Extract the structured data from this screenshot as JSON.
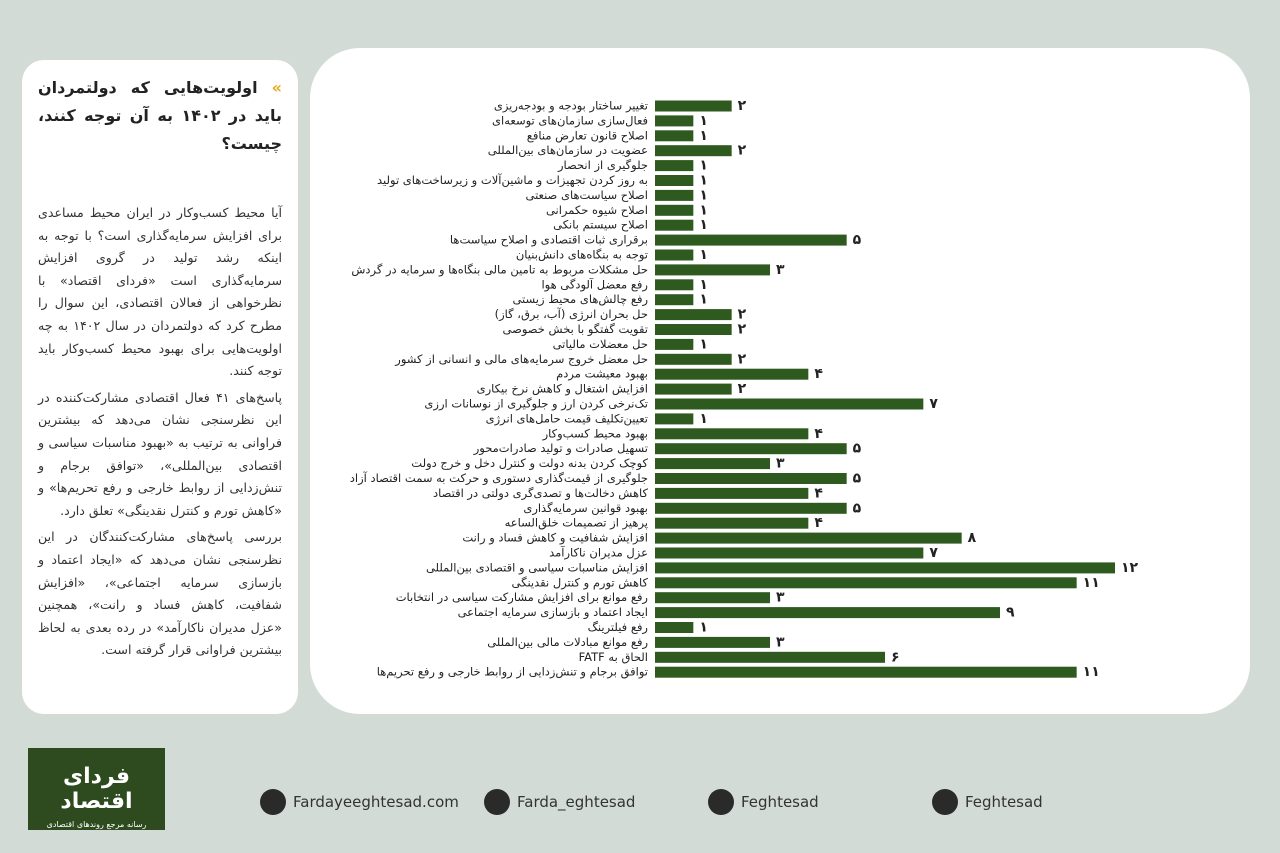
{
  "panel": {
    "title": "اولویت‌هایی که دولتمردان باید در ۱۴۰۲ به آن توجه کنند، چیست؟",
    "paragraphs": [
      "آیا محیط کسب‌وکار در ایران محیط مساعدی برای افزایش سرمایه‌گذاری است؟ با توجه به اینکه رشد تولید در گروی افزایش سرمایه‌گذاری است «فردای اقتصاد» با نظرخواهی از فعالان اقتصادی، این سوال را مطرح کرد که دولتمردان در سال ۱۴۰۲ به چه اولویت‌هایی برای بهبود محیط کسب‌وکار باید توجه کنند.",
      "پاسخ‌های ۴۱ فعال اقتصادی مشارکت‌کننده در این نظرسنجی نشان می‌دهد که بیشترین فراوانی به ترتیب به «بهبود مناسبات سیاسی و اقتصادی بین‌المللی»، «توافق برجام و تنش‌زدایی از روابط خارجی و رفع تحریم‌ها» و «کاهش تورم و کنترل نقدینگی» تعلق دارد.",
      "بررسی پاسخ‌های مشارکت‌کنندگان در این نظرسنجی نشان می‌دهد که «ایجاد اعتماد و بازسازی سرمایه اجتماعی»، «افزایش شفافیت، کاهش فساد و رانت»، همچنین «عزل مدیران ناکارآمد» در رده بعدی به لحاظ بیشترین فراوانی قرار گرفته است."
    ]
  },
  "chart_data": {
    "type": "barh",
    "color": "#2e5a1f",
    "categories": [
      "تغییر ساختار بودجه و بودجه‌ریزی",
      "فعال‌سازی سازمان‌های توسعه‌ای",
      "اصلاح قانون تعارض منافع",
      "عضویت در سازمان‌های بین‌المللی",
      "جلوگیری از انحصار",
      "به روز کردن تجهیزات و ماشین‌آلات و زیرساخت‌های تولید",
      "اصلاح سیاست‌های صنعتی",
      "اصلاح شیوه حکمرانی",
      "اصلاح سیستم بانکی",
      "برقراری ثبات اقتصادی و اصلاح سیاست‌ها",
      "توجه به بنگاه‌های دانش‌بنیان",
      "حل مشکلات مربوط به تامین مالی بنگاه‌ها و سرمایه در گردش",
      "رفع معضل آلودگی هوا",
      "رفع چالش‌های محیط زیستی",
      "حل بحران انرژی (آب، برق، گاز)",
      "تقویت گفتگو با بخش خصوصی",
      "حل معضلات مالیاتی",
      "حل معضل خروج سرمایه‌های مالی و انسانی از کشور",
      "بهبود معیشت مردم",
      "افزایش اشتغال و کاهش نرخ بیکاری",
      "تک‌نرخی کردن ارز و جلوگیری از نوسانات ارزی",
      "تعیین‌تکلیف قیمت حامل‌های انرژی",
      "بهبود محیط کسب‌وکار",
      "تسهیل صادرات و تولید صادرات‌محور",
      "کوچک کردن بدنه دولت و کنترل دخل و خرج دولت",
      "جلوگیری از قیمت‌گذاری دستوری و حرکت به سمت اقتصاد آزاد",
      "کاهش دخالت‌ها و تصدی‌گری دولتی در اقتصاد",
      "بهبود قوانین سرمایه‌گذاری",
      "پرهیز از تصمیمات خلق‌الساعه",
      "افزایش شفافیت و کاهش فساد و رانت",
      "عزل مدیران ناکارآمد",
      "افزایش مناسبات سیاسی و اقتصادی بین‌المللی",
      "کاهش تورم و کنترل نقدینگی",
      "رفع موانع برای افزایش مشارکت سیاسی در انتخابات",
      "ایجاد اعتماد و بازسازی سرمایه اجتماعی",
      "رفع فیلترینگ",
      "رفع موانع مبادلات مالی بین‌المللی",
      "الحاق به FATF",
      "توافق برجام و تنش‌زدایی از روابط خارجی و رفع تحریم‌ها"
    ],
    "values": [
      2,
      1,
      1,
      2,
      1,
      1,
      1,
      1,
      1,
      5,
      1,
      3,
      1,
      1,
      2,
      2,
      1,
      2,
      4,
      2,
      7,
      1,
      4,
      5,
      3,
      5,
      4,
      5,
      4,
      8,
      7,
      12,
      11,
      3,
      9,
      1,
      3,
      6,
      11
    ],
    "value_labels": [
      "۲",
      "۱",
      "۱",
      "۲",
      "۱",
      "۱",
      "۱",
      "۱",
      "۱",
      "۵",
      "۱",
      "۳",
      "۱",
      "۱",
      "۲",
      "۲",
      "۱",
      "۲",
      "۴",
      "۲",
      "۷",
      "۱",
      "۴",
      "۵",
      "۳",
      "۵",
      "۴",
      "۵",
      "۴",
      "۸",
      "۷",
      "۱۲",
      "۱۱",
      "۳",
      "۹",
      "۱",
      "۳",
      "۶",
      "۱۱"
    ]
  },
  "footer": {
    "logo": "فردای اقتصاد",
    "tagline": "رسانه مرجع روندهای اقتصادی",
    "links": [
      "Fardayeeghtesad.com",
      "Farda_eghtesad",
      "Feghtesad",
      "Feghtesad"
    ]
  }
}
